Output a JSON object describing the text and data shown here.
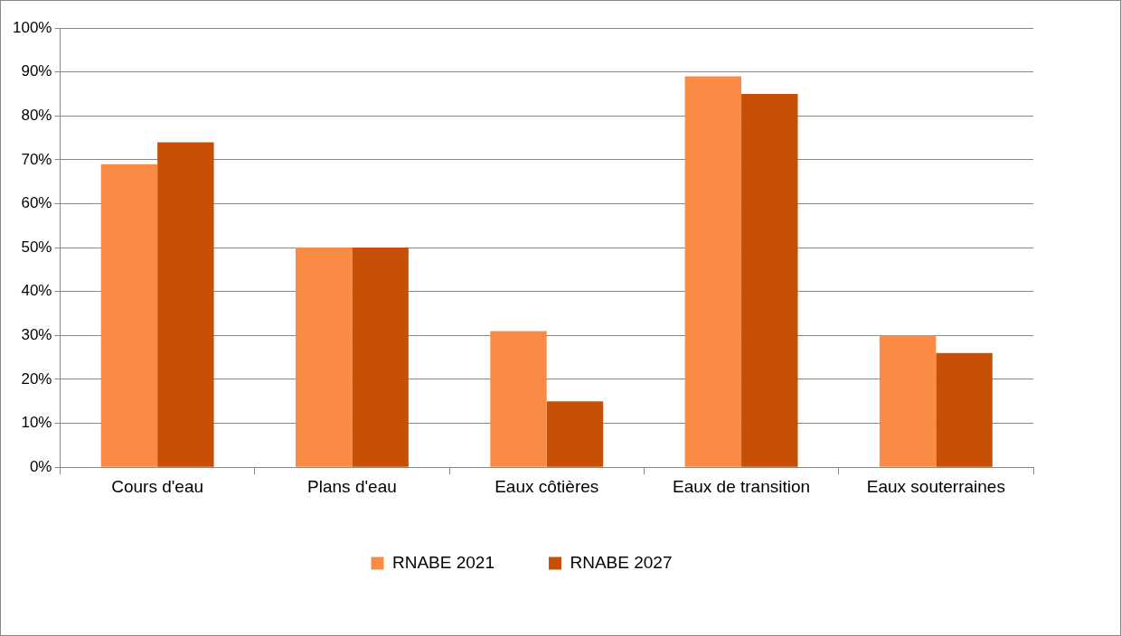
{
  "chart_data": {
    "type": "bar",
    "categories": [
      "Cours d'eau",
      "Plans d'eau",
      "Eaux côtières",
      "Eaux de transition",
      "Eaux souterraines"
    ],
    "series": [
      {
        "name": "RNABE 2021",
        "color": "#f98b45",
        "values": [
          69,
          50,
          31,
          89,
          30
        ]
      },
      {
        "name": "RNABE 2027",
        "color": "#c84f06",
        "values": [
          74,
          50,
          15,
          85,
          26
        ]
      }
    ],
    "ylim": [
      0,
      100
    ],
    "yticks": [
      {
        "value": 0,
        "label": "0%"
      },
      {
        "value": 10,
        "label": "10%"
      },
      {
        "value": 20,
        "label": "20%"
      },
      {
        "value": 30,
        "label": "30%"
      },
      {
        "value": 40,
        "label": "40%"
      },
      {
        "value": 50,
        "label": "50%"
      },
      {
        "value": 60,
        "label": "60%"
      },
      {
        "value": 70,
        "label": "70%"
      },
      {
        "value": 80,
        "label": "80%"
      },
      {
        "value": 90,
        "label": "90%"
      },
      {
        "value": 100,
        "label": "100%"
      }
    ],
    "grid": "y",
    "legend": "bottom"
  }
}
